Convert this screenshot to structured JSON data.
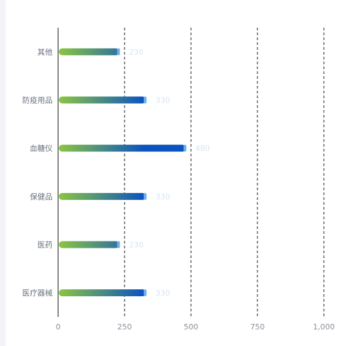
{
  "chart_data": {
    "type": "bar",
    "orientation": "horizontal",
    "categories": [
      "医疗器械",
      "医药",
      "保健品",
      "血糖仪",
      "防疫用品",
      "其他"
    ],
    "values": [
      330,
      230,
      330,
      480,
      330,
      230
    ],
    "xlim": [
      0,
      1000
    ],
    "xticks": [
      "0",
      "250",
      "500",
      "750",
      "1,000"
    ],
    "grid": "vertical dashed",
    "legend": "none"
  },
  "colors": {
    "bar_start": "#8cc63f",
    "bar_end": "#0b53c1",
    "bar_cap": "#6fb0f0",
    "grid": "#222222",
    "axis": "#111111",
    "category_text": "#6b7280",
    "tick_text": "#8a8f99",
    "data_label_text": "#d6e4f5",
    "background": "#ffffff"
  }
}
